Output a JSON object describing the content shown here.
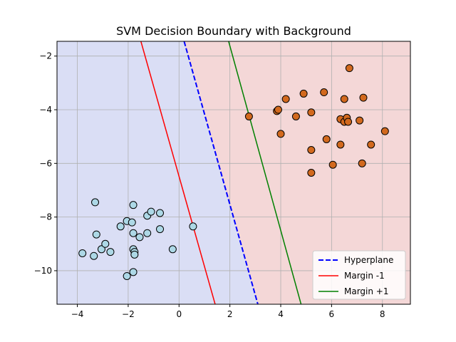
{
  "chart_data": {
    "type": "scatter",
    "title": "SVM Decision Boundary with Background",
    "xlabel": "",
    "ylabel": "",
    "xlim": [
      -4.8,
      9.1
    ],
    "ylim": [
      -11.25,
      -1.45
    ],
    "xticks": [
      -4,
      -2,
      0,
      2,
      4,
      6,
      8
    ],
    "yticks": [
      -10,
      -8,
      -6,
      -4,
      -2
    ],
    "grid": true,
    "background": {
      "class_a_color": "#dadef5",
      "class_b_color": "#f4d7d7"
    },
    "lines": [
      {
        "name": "Hyperplane",
        "style": "dashed",
        "color": "#0000ff",
        "points": [
          [
            0.2,
            -1.45
          ],
          [
            3.1,
            -11.25
          ]
        ]
      },
      {
        "name": "Margin -1",
        "style": "solid",
        "color": "#ff0000",
        "points": [
          [
            -1.5,
            -1.45
          ],
          [
            1.42,
            -11.25
          ]
        ]
      },
      {
        "name": "Margin +1",
        "style": "solid",
        "color": "#008000",
        "points": [
          [
            1.95,
            -1.45
          ],
          [
            4.8,
            -11.25
          ]
        ]
      }
    ],
    "series": [
      {
        "color": "#add8e6",
        "points": [
          [
            -3.3,
            -7.45
          ],
          [
            -3.25,
            -8.65
          ],
          [
            -3.8,
            -9.35
          ],
          [
            -3.35,
            -9.45
          ],
          [
            -3.05,
            -9.2
          ],
          [
            -2.9,
            -9.0
          ],
          [
            -2.7,
            -9.3
          ],
          [
            -2.3,
            -8.35
          ],
          [
            -2.05,
            -8.15
          ],
          [
            -1.85,
            -8.2
          ],
          [
            -1.8,
            -7.55
          ],
          [
            -1.8,
            -8.6
          ],
          [
            -1.8,
            -9.2
          ],
          [
            -1.75,
            -9.3
          ],
          [
            -1.75,
            -9.4
          ],
          [
            -1.55,
            -8.75
          ],
          [
            -1.25,
            -8.6
          ],
          [
            -1.25,
            -7.95
          ],
          [
            -1.1,
            -7.8
          ],
          [
            -0.75,
            -7.85
          ],
          [
            -0.75,
            -8.45
          ],
          [
            -0.25,
            -9.2
          ],
          [
            -2.05,
            -10.2
          ],
          [
            -1.8,
            -10.05
          ],
          [
            0.55,
            -8.35
          ]
        ]
      },
      {
        "color": "#d2691e",
        "points": [
          [
            2.75,
            -4.25
          ],
          [
            3.85,
            -4.05
          ],
          [
            3.9,
            -4.0
          ],
          [
            4.0,
            -4.9
          ],
          [
            4.2,
            -3.6
          ],
          [
            4.6,
            -4.25
          ],
          [
            4.9,
            -3.4
          ],
          [
            5.2,
            -4.1
          ],
          [
            5.2,
            -5.5
          ],
          [
            5.2,
            -6.35
          ],
          [
            5.7,
            -3.35
          ],
          [
            5.8,
            -5.1
          ],
          [
            6.05,
            -6.05
          ],
          [
            6.35,
            -4.35
          ],
          [
            6.35,
            -5.3
          ],
          [
            6.5,
            -4.45
          ],
          [
            6.5,
            -3.6
          ],
          [
            6.6,
            -4.3
          ],
          [
            6.65,
            -4.45
          ],
          [
            6.7,
            -2.45
          ],
          [
            7.1,
            -4.4
          ],
          [
            7.2,
            -6.0
          ],
          [
            7.25,
            -3.55
          ],
          [
            7.55,
            -5.3
          ],
          [
            8.1,
            -4.8
          ]
        ]
      }
    ],
    "legend": {
      "position": "lower-right",
      "entries": [
        "Hyperplane",
        "Margin -1",
        "Margin +1"
      ]
    }
  }
}
